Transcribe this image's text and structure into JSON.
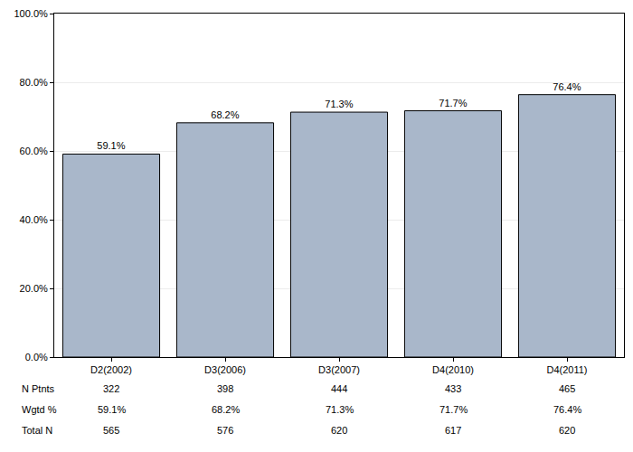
{
  "chart_data": {
    "type": "bar",
    "categories": [
      "D2(2002)",
      "D3(2006)",
      "D3(2007)",
      "D4(2010)",
      "D4(2011)"
    ],
    "values": [
      59.1,
      68.2,
      71.3,
      71.7,
      76.4
    ],
    "value_labels": [
      "59.1%",
      "68.2%",
      "71.3%",
      "71.7%",
      "76.4%"
    ],
    "data_labels": true,
    "color": "#a9b7ca",
    "ylim": [
      0,
      100
    ],
    "yticks": [
      {
        "value": 0,
        "label": "0.0%"
      },
      {
        "value": 20,
        "label": "20.0%"
      },
      {
        "value": 40,
        "label": "40.0%"
      },
      {
        "value": 60,
        "label": "60.0%"
      },
      {
        "value": 80,
        "label": "80.0%"
      },
      {
        "value": 100,
        "label": "100.0%"
      }
    ],
    "grid": true,
    "table": {
      "rows": [
        {
          "label": "N Ptnts",
          "values": [
            322,
            398,
            444,
            433,
            465
          ]
        },
        {
          "label": "Wgtd %",
          "values": [
            59.1,
            68.2,
            71.3,
            71.7,
            76.4
          ],
          "value_labels": [
            "59.1%",
            "68.2%",
            "71.3%",
            "71.7%",
            "76.4%"
          ]
        },
        {
          "label": "Total N",
          "values": [
            565,
            576,
            620,
            617,
            620
          ]
        }
      ]
    }
  }
}
